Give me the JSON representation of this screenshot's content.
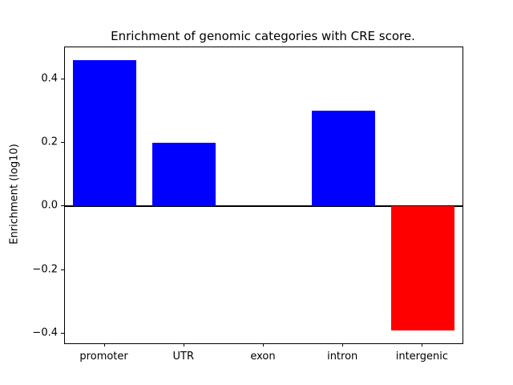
{
  "chart_data": {
    "type": "bar",
    "title": "Enrichment of genomic categories with CRE score.",
    "xlabel": "",
    "ylabel": "Enrichment (log10)",
    "categories": [
      "promoter",
      "UTR",
      "exon",
      "intron",
      "intergenic"
    ],
    "values": [
      0.46,
      0.2,
      0.0,
      0.3,
      -0.39
    ],
    "bar_colors": [
      "#0000ff",
      "#0000ff",
      "#0000ff",
      "#0000ff",
      "#ff0000"
    ],
    "positive_color": "#0000ff",
    "negative_color": "#ff0000",
    "ylim": [
      -0.43,
      0.5
    ],
    "yticks": [
      -0.4,
      -0.2,
      0.0,
      0.2,
      0.4
    ],
    "ytick_labels": [
      "−0.4",
      "−0.2",
      "0.0",
      "0.2",
      "0.4"
    ],
    "grid": false,
    "legend": "none",
    "zero_line": true,
    "bar_width_fraction": 0.8
  }
}
